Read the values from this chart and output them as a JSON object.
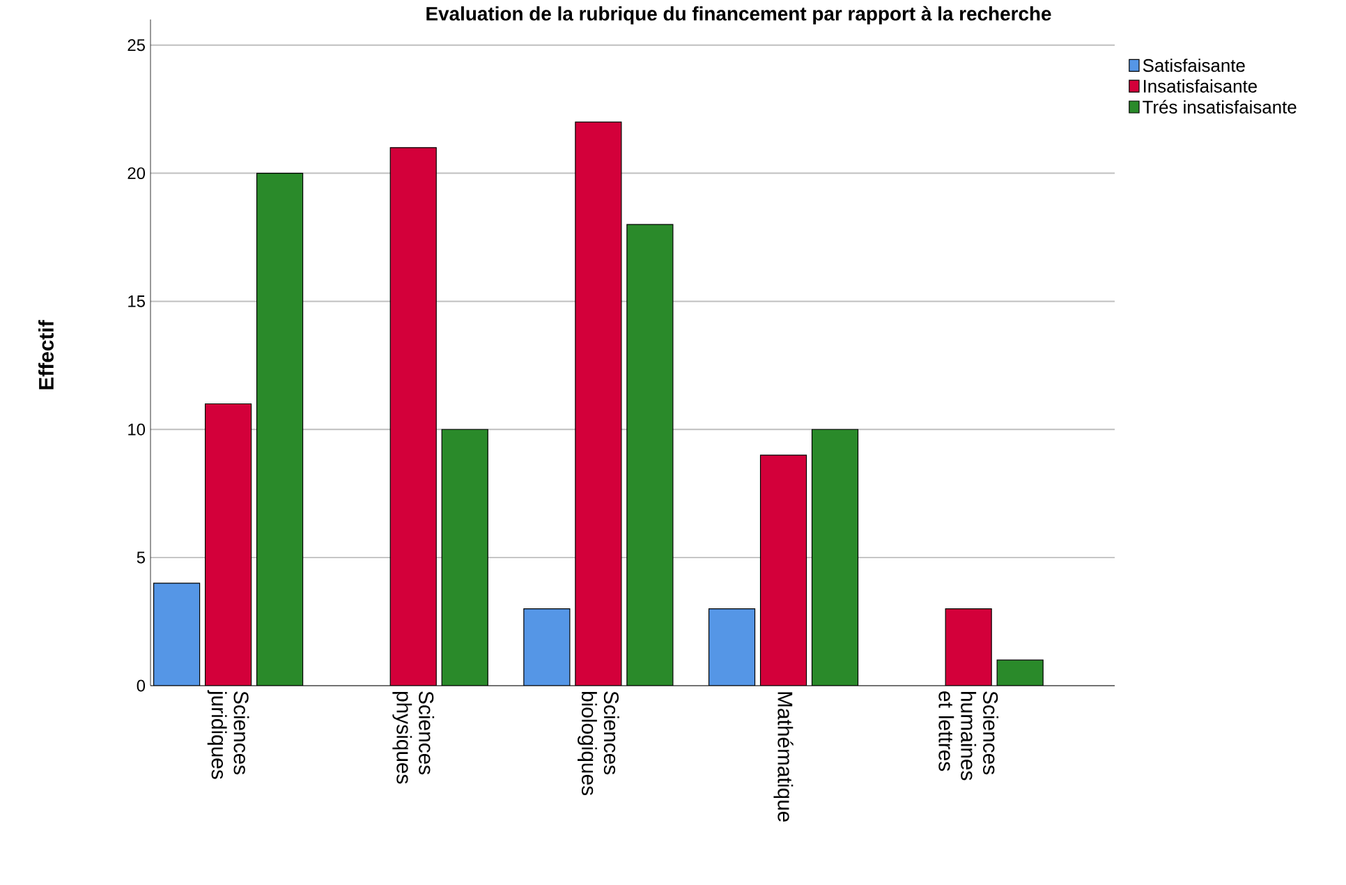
{
  "chart_data": {
    "type": "bar",
    "title": "Evaluation de la rubrique du financement par rapport à la recherche",
    "ylabel": "Effectif",
    "categories": [
      "Sciences juridiques",
      "Sciences physiques",
      "Sciences biologiques",
      "Mathématique",
      "Sciences humaines et lettres"
    ],
    "series": [
      {
        "name": "Satisfaisante",
        "color": "#5596e6",
        "values": [
          4,
          null,
          3,
          3,
          null
        ]
      },
      {
        "name": "Insatisfaisante",
        "color": "#d3003a",
        "values": [
          11,
          21,
          22,
          9,
          3
        ]
      },
      {
        "name": "Trés insatisfaisante",
        "color": "#2a8a2a",
        "values": [
          20,
          10,
          18,
          10,
          1
        ]
      }
    ],
    "ylim": [
      0,
      26
    ],
    "yticks": [
      0,
      5,
      10,
      15,
      20,
      25
    ],
    "grid": "y",
    "legend": "right"
  }
}
